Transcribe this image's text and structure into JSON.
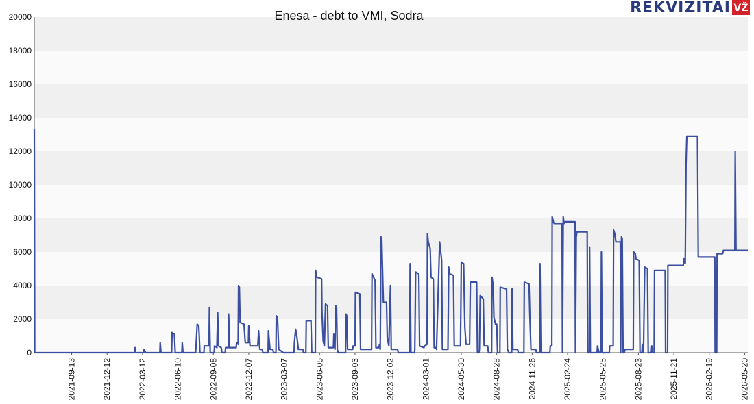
{
  "logo": {
    "text": "REKVIZITAI",
    "badge": "VŽ",
    "text_color": "#2b3a7a",
    "badge_color": "#d2232a"
  },
  "chart_data": {
    "type": "line",
    "title": "Enesa - debt to VMI, Sodra",
    "xlabel": "",
    "ylabel": "",
    "x_range": [
      "2021-06-10",
      "2026-05-28"
    ],
    "ylim": [
      0,
      20000
    ],
    "y_ticks": [
      0,
      2000,
      4000,
      6000,
      8000,
      10000,
      12000,
      14000,
      16000,
      18000,
      20000
    ],
    "x_ticks": [
      "2021-09-13",
      "2021-12-12",
      "2022-03-12",
      "2022-06-10",
      "2022-09-08",
      "2022-12-07",
      "2023-03-07",
      "2023-06-05",
      "2023-09-03",
      "2023-12-02",
      "2024-03-01",
      "2024-05-30",
      "2024-08-28",
      "2024-11-26",
      "2025-02-24",
      "2025-05-25",
      "2025-08-23",
      "2025-11-21",
      "2026-02-19",
      "2026-05-20"
    ],
    "grid": "horizontal bands",
    "legend": "none",
    "line_color": "#3b4fa0",
    "band_color": "#f0f0f0",
    "series": [
      {
        "points": [
          [
            "2021-06-10",
            13300
          ],
          [
            "2021-06-11",
            0
          ],
          [
            "2022-02-20",
            0
          ],
          [
            "2022-02-21",
            300
          ],
          [
            "2022-02-23",
            0
          ],
          [
            "2022-03-15",
            0
          ],
          [
            "2022-03-16",
            200
          ],
          [
            "2022-03-20",
            0
          ],
          [
            "2022-04-25",
            0
          ],
          [
            "2022-04-26",
            600
          ],
          [
            "2022-04-28",
            0
          ],
          [
            "2022-05-25",
            0
          ],
          [
            "2022-05-26",
            1200
          ],
          [
            "2022-06-01",
            1100
          ],
          [
            "2022-06-03",
            0
          ],
          [
            "2022-06-20",
            0
          ],
          [
            "2022-06-21",
            600
          ],
          [
            "2022-06-23",
            0
          ],
          [
            "2022-07-25",
            0
          ],
          [
            "2022-07-26",
            400
          ],
          [
            "2022-07-29",
            1700
          ],
          [
            "2022-08-02",
            1600
          ],
          [
            "2022-08-05",
            0
          ],
          [
            "2022-08-15",
            0
          ],
          [
            "2022-08-16",
            400
          ],
          [
            "2022-08-28",
            400
          ],
          [
            "2022-08-29",
            2700
          ],
          [
            "2022-08-31",
            0
          ],
          [
            "2022-09-10",
            0
          ],
          [
            "2022-09-11",
            400
          ],
          [
            "2022-09-17",
            300
          ],
          [
            "2022-09-19",
            2400
          ],
          [
            "2022-09-21",
            400
          ],
          [
            "2022-09-28",
            300
          ],
          [
            "2022-09-30",
            0
          ],
          [
            "2022-10-08",
            0
          ],
          [
            "2022-10-09",
            300
          ],
          [
            "2022-10-16",
            300
          ],
          [
            "2022-10-17",
            2300
          ],
          [
            "2022-10-19",
            300
          ],
          [
            "2022-11-05",
            300
          ],
          [
            "2022-11-06",
            600
          ],
          [
            "2022-11-10",
            500
          ],
          [
            "2022-11-11",
            4000
          ],
          [
            "2022-11-13",
            3900
          ],
          [
            "2022-11-15",
            1800
          ],
          [
            "2022-11-25",
            1700
          ],
          [
            "2022-11-28",
            600
          ],
          [
            "2022-12-06",
            600
          ],
          [
            "2022-12-07",
            1600
          ],
          [
            "2022-12-10",
            400
          ],
          [
            "2022-12-30",
            400
          ],
          [
            "2023-01-01",
            1300
          ],
          [
            "2023-01-04",
            200
          ],
          [
            "2023-01-10",
            200
          ],
          [
            "2023-01-12",
            0
          ],
          [
            "2023-01-25",
            0
          ],
          [
            "2023-01-26",
            1300
          ],
          [
            "2023-01-30",
            200
          ],
          [
            "2023-02-06",
            200
          ],
          [
            "2023-02-08",
            0
          ],
          [
            "2023-02-14",
            0
          ],
          [
            "2023-02-15",
            2200
          ],
          [
            "2023-02-18",
            2100
          ],
          [
            "2023-02-21",
            200
          ],
          [
            "2023-03-05",
            0
          ],
          [
            "2023-04-01",
            0
          ],
          [
            "2023-04-02",
            600
          ],
          [
            "2023-04-05",
            1400
          ],
          [
            "2023-04-08",
            1000
          ],
          [
            "2023-04-12",
            200
          ],
          [
            "2023-04-24",
            200
          ],
          [
            "2023-04-25",
            0
          ],
          [
            "2023-05-01",
            0
          ],
          [
            "2023-05-02",
            1900
          ],
          [
            "2023-05-14",
            1900
          ],
          [
            "2023-05-16",
            0
          ],
          [
            "2023-05-25",
            0
          ],
          [
            "2023-05-26",
            4900
          ],
          [
            "2023-05-29",
            4500
          ],
          [
            "2023-06-10",
            4400
          ],
          [
            "2023-06-11",
            2400
          ],
          [
            "2023-06-14",
            700
          ],
          [
            "2023-06-17",
            400
          ],
          [
            "2023-06-20",
            2900
          ],
          [
            "2023-06-25",
            2800
          ],
          [
            "2023-06-27",
            300
          ],
          [
            "2023-07-10",
            300
          ],
          [
            "2023-07-11",
            1100
          ],
          [
            "2023-07-14",
            200
          ],
          [
            "2023-07-16",
            2800
          ],
          [
            "2023-07-18",
            2700
          ],
          [
            "2023-07-20",
            200
          ],
          [
            "2023-07-22",
            0
          ],
          [
            "2023-08-10",
            0
          ],
          [
            "2023-08-11",
            2300
          ],
          [
            "2023-08-13",
            2200
          ],
          [
            "2023-08-15",
            200
          ],
          [
            "2023-08-28",
            200
          ],
          [
            "2023-08-29",
            400
          ],
          [
            "2023-09-03",
            400
          ],
          [
            "2023-09-04",
            3600
          ],
          [
            "2023-09-15",
            3500
          ],
          [
            "2023-09-17",
            200
          ],
          [
            "2023-10-15",
            200
          ],
          [
            "2023-10-16",
            4700
          ],
          [
            "2023-10-24",
            4300
          ],
          [
            "2023-10-26",
            300
          ],
          [
            "2023-11-03",
            300
          ],
          [
            "2023-11-04",
            500
          ],
          [
            "2023-11-06",
            200
          ],
          [
            "2023-11-08",
            6900
          ],
          [
            "2023-11-10",
            6700
          ],
          [
            "2023-11-14",
            3000
          ],
          [
            "2023-11-22",
            3000
          ],
          [
            "2023-11-24",
            900
          ],
          [
            "2023-11-28",
            400
          ],
          [
            "2023-12-02",
            4000
          ],
          [
            "2023-12-04",
            200
          ],
          [
            "2023-12-20",
            200
          ],
          [
            "2023-12-22",
            0
          ],
          [
            "2024-01-20",
            0
          ],
          [
            "2024-01-21",
            5300
          ],
          [
            "2024-01-23",
            0
          ],
          [
            "2024-02-01",
            0
          ],
          [
            "2024-02-02",
            200
          ],
          [
            "2024-02-04",
            4800
          ],
          [
            "2024-02-12",
            4700
          ],
          [
            "2024-02-14",
            400
          ],
          [
            "2024-02-25",
            300
          ],
          [
            "2024-02-27",
            400
          ],
          [
            "2024-03-04",
            500
          ],
          [
            "2024-03-05",
            7100
          ],
          [
            "2024-03-07",
            6600
          ],
          [
            "2024-03-12",
            6200
          ],
          [
            "2024-03-14",
            4500
          ],
          [
            "2024-03-20",
            4400
          ],
          [
            "2024-03-22",
            300
          ],
          [
            "2024-03-26",
            300
          ],
          [
            "2024-03-28",
            200
          ],
          [
            "2024-04-05",
            6600
          ],
          [
            "2024-04-10",
            5500
          ],
          [
            "2024-04-12",
            200
          ],
          [
            "2024-04-26",
            200
          ],
          [
            "2024-04-28",
            5100
          ],
          [
            "2024-05-01",
            4700
          ],
          [
            "2024-05-10",
            4600
          ],
          [
            "2024-05-12",
            400
          ],
          [
            "2024-05-28",
            400
          ],
          [
            "2024-05-30",
            5400
          ],
          [
            "2024-06-05",
            5300
          ],
          [
            "2024-06-08",
            1500
          ],
          [
            "2024-06-11",
            500
          ],
          [
            "2024-06-20",
            500
          ],
          [
            "2024-06-22",
            4200
          ],
          [
            "2024-07-08",
            4200
          ],
          [
            "2024-07-10",
            0
          ],
          [
            "2024-07-14",
            0
          ],
          [
            "2024-07-15",
            200
          ],
          [
            "2024-07-17",
            3400
          ],
          [
            "2024-07-25",
            3200
          ],
          [
            "2024-07-27",
            400
          ],
          [
            "2024-08-05",
            400
          ],
          [
            "2024-08-07",
            0
          ],
          [
            "2024-08-15",
            0
          ],
          [
            "2024-08-16",
            4500
          ],
          [
            "2024-08-19",
            4000
          ],
          [
            "2024-08-21",
            2100
          ],
          [
            "2024-08-25",
            1700
          ],
          [
            "2024-08-28",
            1700
          ],
          [
            "2024-08-30",
            0
          ],
          [
            "2024-09-05",
            0
          ],
          [
            "2024-09-06",
            3900
          ],
          [
            "2024-09-22",
            3800
          ],
          [
            "2024-09-24",
            200
          ],
          [
            "2024-09-28",
            0
          ],
          [
            "2024-10-05",
            0
          ],
          [
            "2024-10-06",
            3800
          ],
          [
            "2024-10-08",
            200
          ],
          [
            "2024-10-20",
            200
          ],
          [
            "2024-10-22",
            0
          ],
          [
            "2024-11-05",
            0
          ],
          [
            "2024-11-06",
            4200
          ],
          [
            "2024-11-18",
            4100
          ],
          [
            "2024-11-20",
            2300
          ],
          [
            "2024-11-23",
            200
          ],
          [
            "2024-12-05",
            200
          ],
          [
            "2024-12-07",
            0
          ],
          [
            "2024-12-15",
            0
          ],
          [
            "2024-12-16",
            5300
          ],
          [
            "2024-12-18",
            0
          ],
          [
            "2025-01-10",
            0
          ],
          [
            "2025-01-11",
            400
          ],
          [
            "2025-01-15",
            400
          ],
          [
            "2025-01-16",
            8100
          ],
          [
            "2025-01-19",
            7800
          ],
          [
            "2025-01-21",
            7700
          ],
          [
            "2025-02-10",
            7700
          ],
          [
            "2025-02-11",
            0
          ],
          [
            "2025-02-13",
            8100
          ],
          [
            "2025-02-15",
            7700
          ],
          [
            "2025-02-18",
            7800
          ],
          [
            "2025-03-15",
            7800
          ],
          [
            "2025-03-16",
            0
          ],
          [
            "2025-03-18",
            6900
          ],
          [
            "2025-03-20",
            7200
          ],
          [
            "2025-04-15",
            7200
          ],
          [
            "2025-04-16",
            0
          ],
          [
            "2025-04-20",
            0
          ],
          [
            "2025-04-21",
            6300
          ],
          [
            "2025-04-23",
            0
          ],
          [
            "2025-05-10",
            0
          ],
          [
            "2025-05-11",
            400
          ],
          [
            "2025-05-15",
            0
          ],
          [
            "2025-05-20",
            0
          ],
          [
            "2025-05-21",
            6000
          ],
          [
            "2025-05-23",
            0
          ],
          [
            "2025-06-10",
            0
          ],
          [
            "2025-06-11",
            400
          ],
          [
            "2025-06-20",
            400
          ],
          [
            "2025-06-21",
            7300
          ],
          [
            "2025-06-24",
            7100
          ],
          [
            "2025-06-27",
            6600
          ],
          [
            "2025-07-08",
            6600
          ],
          [
            "2025-07-09",
            0
          ],
          [
            "2025-07-11",
            6900
          ],
          [
            "2025-07-13",
            6800
          ],
          [
            "2025-07-15",
            0
          ],
          [
            "2025-07-18",
            0
          ],
          [
            "2025-07-20",
            200
          ],
          [
            "2025-08-10",
            200
          ],
          [
            "2025-08-11",
            6000
          ],
          [
            "2025-08-15",
            5900
          ],
          [
            "2025-08-17",
            5600
          ],
          [
            "2025-08-25",
            5500
          ],
          [
            "2025-08-27",
            0
          ],
          [
            "2025-09-01",
            0
          ],
          [
            "2025-09-02",
            500
          ],
          [
            "2025-09-05",
            0
          ],
          [
            "2025-09-08",
            5100
          ],
          [
            "2025-09-15",
            5000
          ],
          [
            "2025-09-17",
            0
          ],
          [
            "2025-09-25",
            0
          ],
          [
            "2025-09-26",
            400
          ],
          [
            "2025-09-28",
            0
          ],
          [
            "2025-10-02",
            0
          ],
          [
            "2025-10-03",
            4900
          ],
          [
            "2025-10-30",
            4900
          ],
          [
            "2025-10-31",
            0
          ],
          [
            "2025-11-05",
            0
          ],
          [
            "2025-11-06",
            5200
          ],
          [
            "2025-12-15",
            5200
          ],
          [
            "2025-12-17",
            5600
          ],
          [
            "2025-12-20",
            5300
          ],
          [
            "2025-12-22",
            11300
          ],
          [
            "2025-12-24",
            12900
          ],
          [
            "2026-01-20",
            12900
          ],
          [
            "2026-01-22",
            5700
          ],
          [
            "2026-03-05",
            5700
          ],
          [
            "2026-03-06",
            0
          ],
          [
            "2026-03-10",
            0
          ],
          [
            "2026-03-11",
            5900
          ],
          [
            "2026-03-25",
            5900
          ],
          [
            "2026-03-27",
            6100
          ],
          [
            "2026-04-25",
            6100
          ],
          [
            "2026-04-26",
            12000
          ],
          [
            "2026-04-28",
            6100
          ],
          [
            "2026-05-28",
            6100
          ]
        ]
      }
    ]
  }
}
